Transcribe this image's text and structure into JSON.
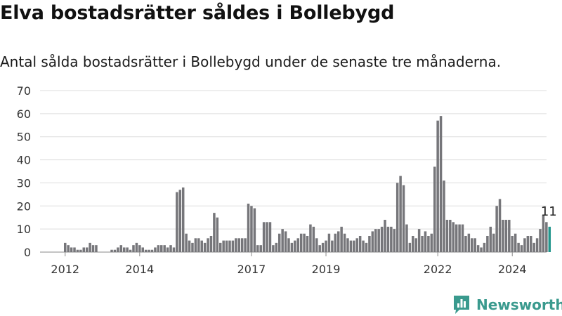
{
  "title": "Elva bostadsrätter såldes i Bollebygd",
  "subtitle": "Antal sålda bostadsrätter i Bollebygd under de senaste tre månaderna.",
  "brand": {
    "name": "Newsworthy",
    "color": "#3a9a8e"
  },
  "chart_data": {
    "type": "bar",
    "title": "Elva bostadsrätter såldes i Bollebygd",
    "subtitle": "Antal sålda bostadsrätter i Bollebygd under de senaste tre månaderna.",
    "xlabel": "",
    "ylabel": "",
    "ylim": [
      0,
      70
    ],
    "yticks": [
      0,
      10,
      20,
      30,
      40,
      50,
      60,
      70
    ],
    "xticks": [
      "2012",
      "2014",
      "2017",
      "2019",
      "2022",
      "2024"
    ],
    "grid": true,
    "bar_color": "#76767a",
    "highlight_color": "#22968c",
    "highlight_label": "11",
    "values": [
      4,
      3,
      2,
      2,
      1,
      1,
      2,
      2,
      4,
      3,
      3,
      0,
      0,
      0,
      0,
      1,
      1,
      2,
      3,
      2,
      2,
      1,
      3,
      4,
      3,
      2,
      1,
      1,
      1,
      2,
      3,
      3,
      3,
      2,
      3,
      2,
      26,
      27,
      28,
      8,
      5,
      4,
      6,
      6,
      5,
      4,
      6,
      7,
      17,
      15,
      4,
      5,
      5,
      5,
      5,
      6,
      6,
      6,
      6,
      21,
      20,
      19,
      3,
      3,
      13,
      13,
      13,
      3,
      4,
      8,
      10,
      9,
      6,
      4,
      5,
      6,
      8,
      8,
      7,
      12,
      11,
      6,
      3,
      4,
      5,
      8,
      5,
      8,
      9,
      11,
      8,
      6,
      5,
      5,
      6,
      7,
      5,
      4,
      7,
      9,
      10,
      10,
      11,
      14,
      11,
      11,
      10,
      30,
      33,
      29,
      12,
      4,
      7,
      6,
      10,
      7,
      9,
      7,
      8,
      37,
      57,
      59,
      31,
      14,
      14,
      13,
      12,
      12,
      12,
      7,
      8,
      6,
      6,
      3,
      2,
      4,
      7,
      11,
      8,
      20,
      23,
      14,
      14,
      14,
      7,
      8,
      4,
      3,
      6,
      7,
      7,
      4,
      6,
      10,
      16,
      13,
      11
    ]
  }
}
